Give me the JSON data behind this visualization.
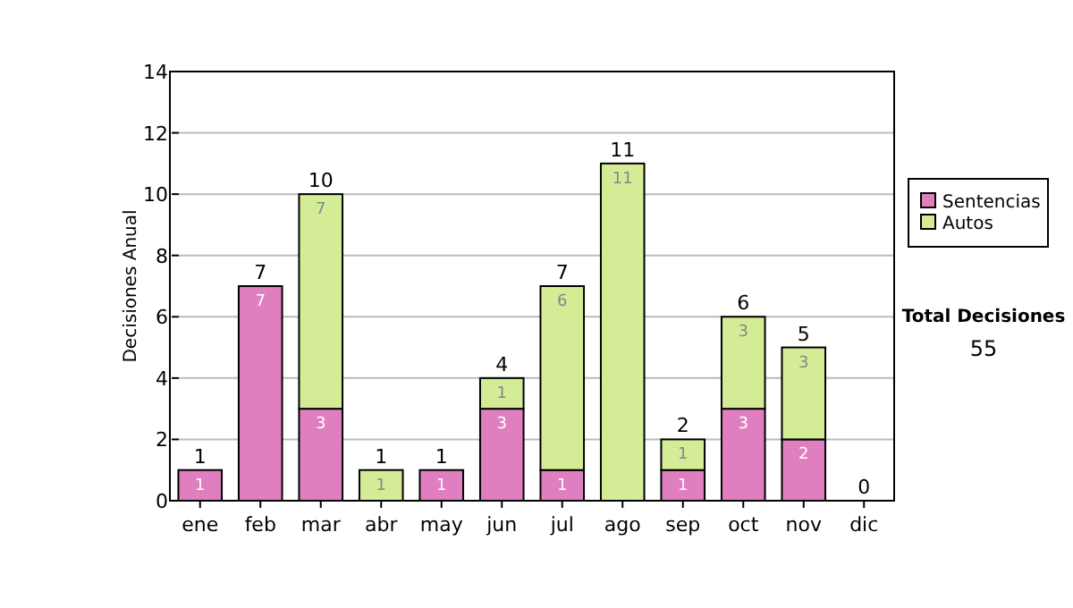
{
  "chart_data": {
    "type": "bar",
    "stacked": true,
    "ylabel": "Decisiones Anual",
    "categories": [
      "ene",
      "feb",
      "mar",
      "abr",
      "may",
      "jun",
      "jul",
      "ago",
      "sep",
      "oct",
      "nov",
      "dic"
    ],
    "series": [
      {
        "name": "Sentencias",
        "color": "#e07fc0",
        "values": [
          1,
          7,
          3,
          0,
          1,
          3,
          1,
          0,
          1,
          3,
          2,
          0
        ],
        "value_labels": [
          "1",
          "7",
          "3",
          null,
          "1",
          "3",
          "1",
          null,
          "1",
          "3",
          "2",
          null
        ]
      },
      {
        "name": "Autos",
        "color": "#d4ec96",
        "values": [
          0,
          0,
          7,
          1,
          0,
          1,
          6,
          11,
          1,
          3,
          3,
          0
        ],
        "value_labels": [
          null,
          null,
          "7",
          "1",
          null,
          "1",
          "6",
          "11",
          "1",
          "3",
          "3",
          null
        ]
      }
    ],
    "totals": [
      "1",
      "7",
      "10",
      "1",
      "1",
      "4",
      "7",
      "11",
      "2",
      "6",
      "5",
      "0"
    ],
    "ylim": [
      0,
      14
    ],
    "yticks": [
      0,
      2,
      4,
      6,
      8,
      10,
      12,
      14
    ],
    "grid": "y",
    "legend": "right",
    "annotations": [
      "Total Decisiones",
      "55"
    ]
  }
}
